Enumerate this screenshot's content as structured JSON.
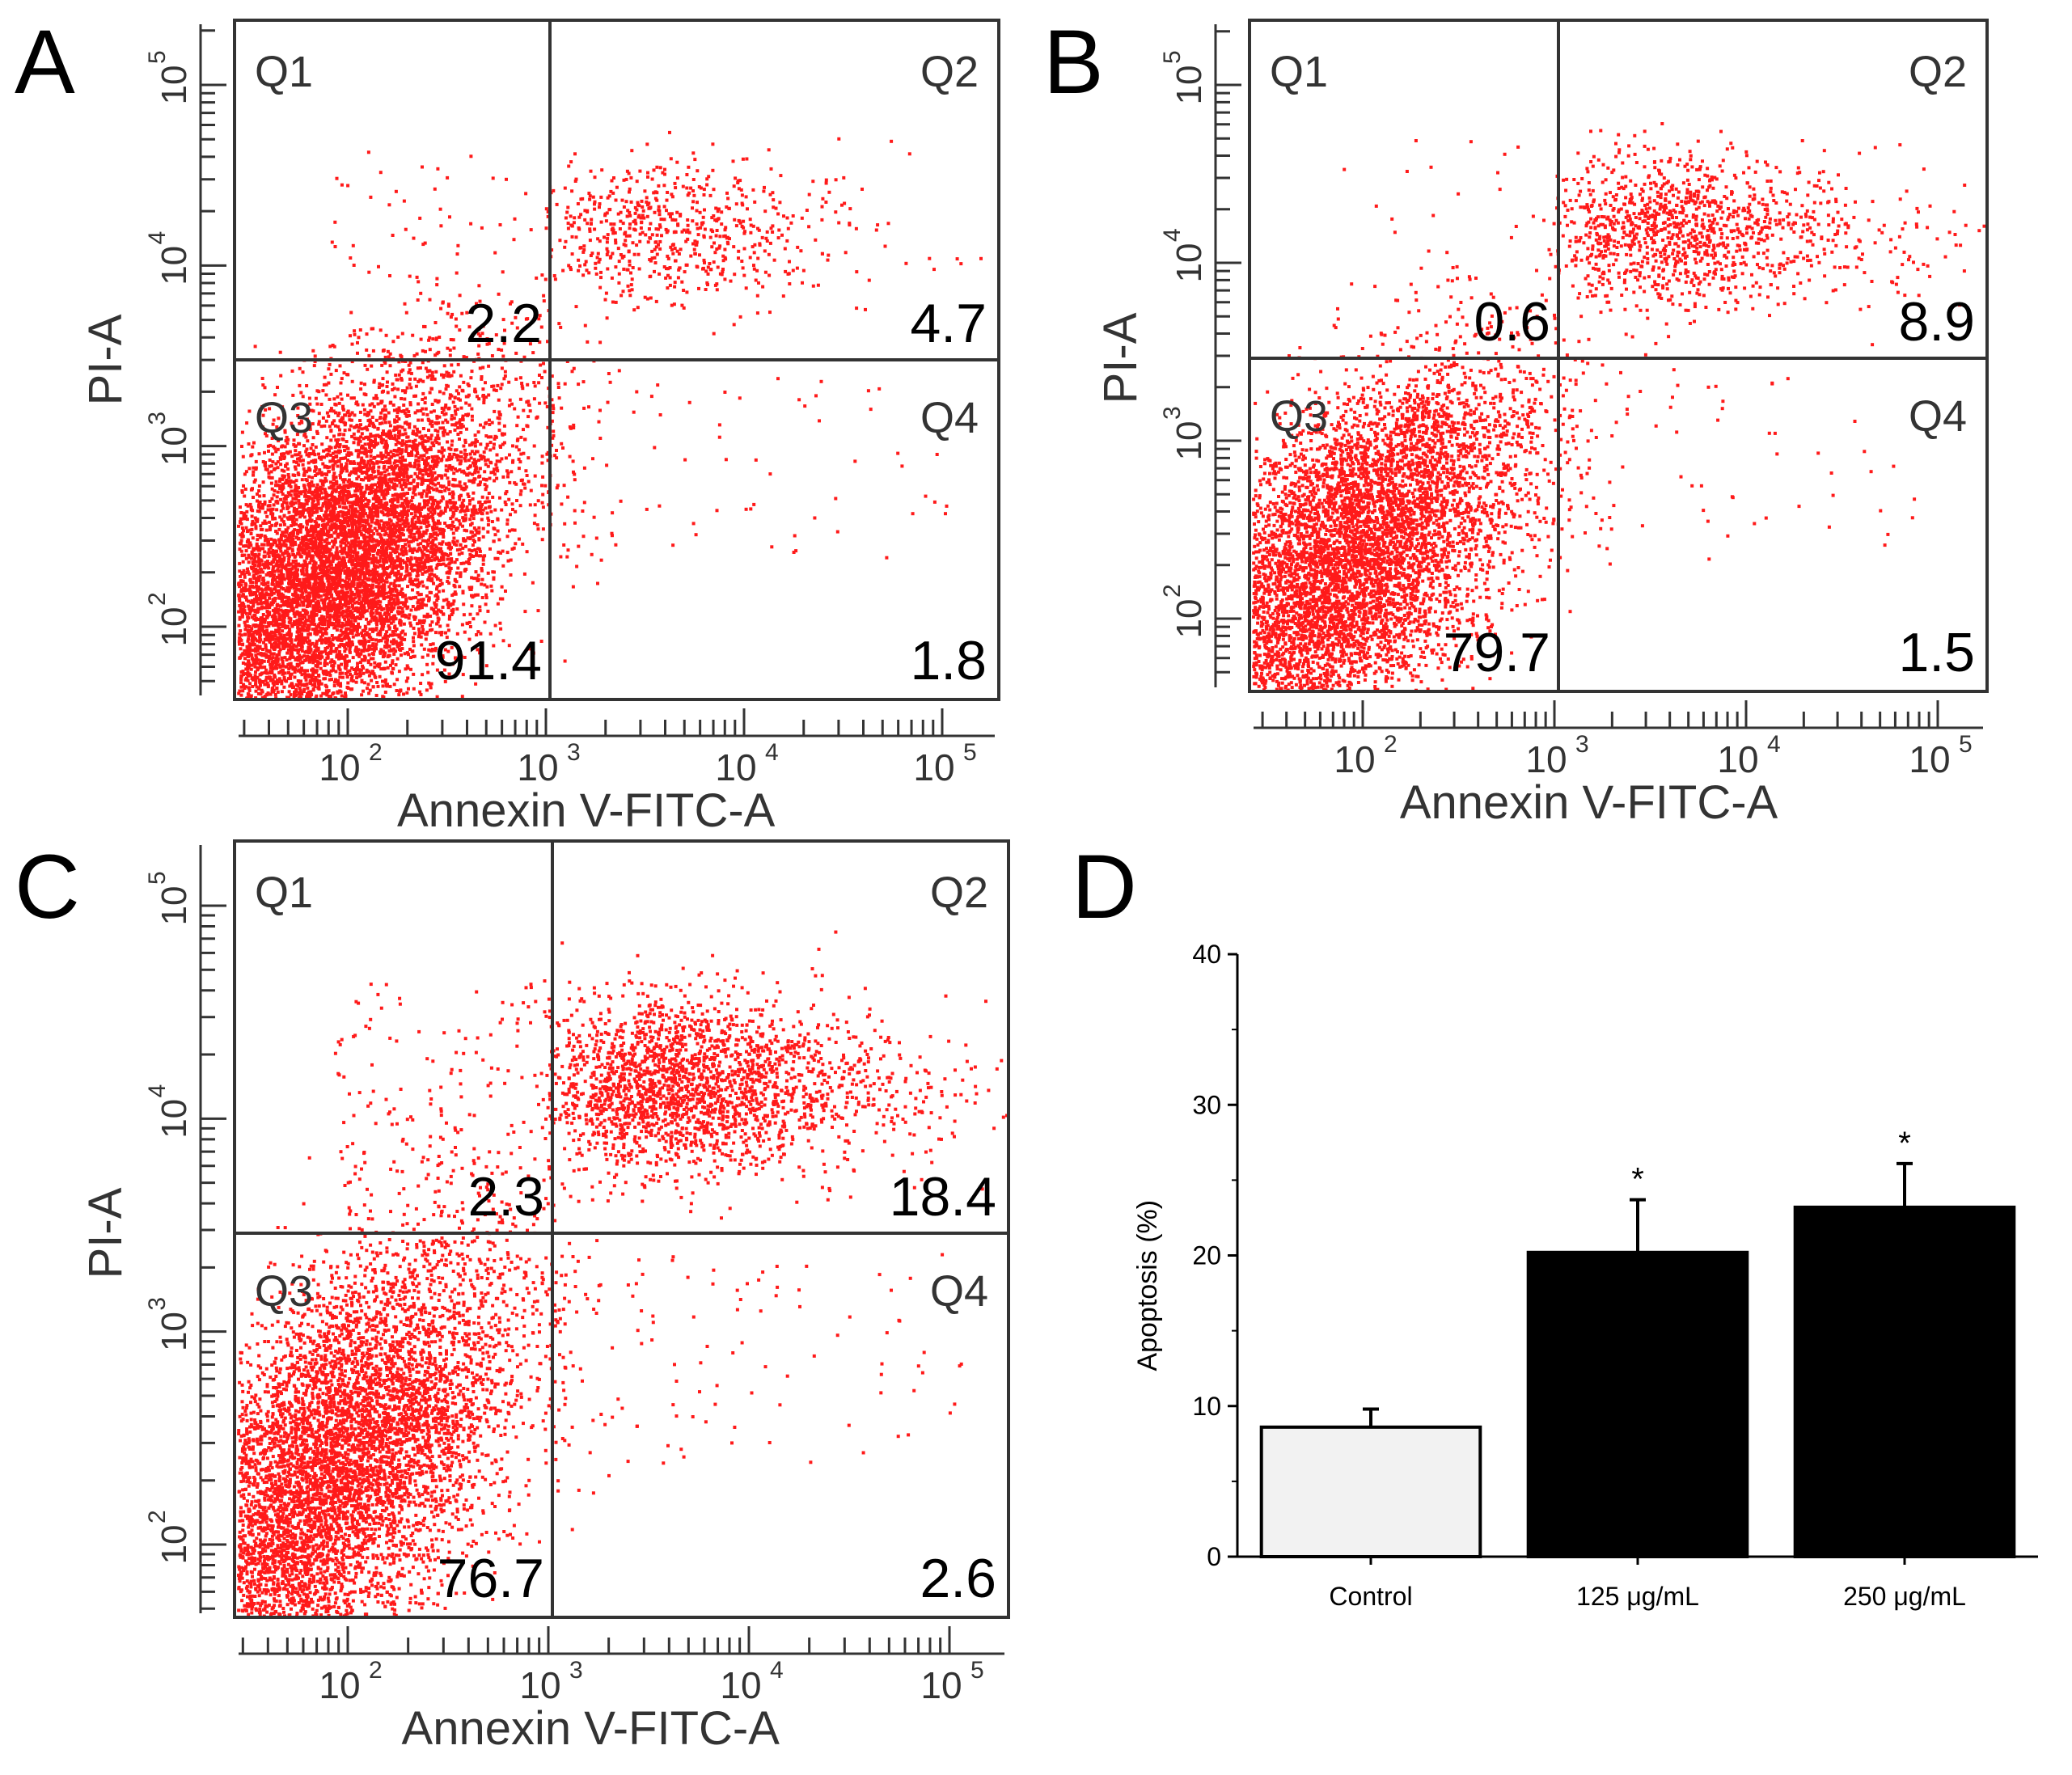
{
  "colors": {
    "dot": "#ff1a1a",
    "frame": "#333333",
    "text": "#000000",
    "bar_control": "#f2f2f2",
    "bar_treated": "#000000"
  },
  "chart_data": [
    {
      "panel": "A",
      "type": "scatter",
      "xlabel": "Annexin V-FITC-A",
      "ylabel": "PI-A",
      "xticks": [
        "10",
        "10",
        "10",
        "10"
      ],
      "xtick_exponents": [
        "2",
        "3",
        "4",
        "5"
      ],
      "yticks": [
        "10",
        "10",
        "10",
        "10"
      ],
      "ytick_exponents": [
        "2",
        "3",
        "4",
        "5"
      ],
      "axis_scale": "log",
      "quadrants": [
        {
          "name": "Q1",
          "percent": "2.2"
        },
        {
          "name": "Q2",
          "percent": "4.7"
        },
        {
          "name": "Q3",
          "percent": "91.4"
        },
        {
          "name": "Q4",
          "percent": "1.8"
        }
      ]
    },
    {
      "panel": "B",
      "type": "scatter",
      "xlabel": "Annexin V-FITC-A",
      "ylabel": "PI-A",
      "xticks": [
        "10",
        "10",
        "10",
        "10"
      ],
      "xtick_exponents": [
        "2",
        "3",
        "4",
        "5"
      ],
      "yticks": [
        "10",
        "10",
        "10",
        "10"
      ],
      "ytick_exponents": [
        "2",
        "3",
        "4",
        "5"
      ],
      "axis_scale": "log",
      "quadrants": [
        {
          "name": "Q1",
          "percent": "0.6"
        },
        {
          "name": "Q2",
          "percent": "8.9"
        },
        {
          "name": "Q3",
          "percent": "79.7"
        },
        {
          "name": "Q4",
          "percent": "1.5"
        }
      ]
    },
    {
      "panel": "C",
      "type": "scatter",
      "xlabel": "Annexin V-FITC-A",
      "ylabel": "PI-A",
      "xticks": [
        "10",
        "10",
        "10",
        "10"
      ],
      "xtick_exponents": [
        "2",
        "3",
        "4",
        "5"
      ],
      "yticks": [
        "10",
        "10",
        "10",
        "10"
      ],
      "ytick_exponents": [
        "2",
        "3",
        "4",
        "5"
      ],
      "axis_scale": "log",
      "quadrants": [
        {
          "name": "Q1",
          "percent": "2.3"
        },
        {
          "name": "Q2",
          "percent": "18.4"
        },
        {
          "name": "Q3",
          "percent": "76.7"
        },
        {
          "name": "Q4",
          "percent": "2.6"
        }
      ]
    },
    {
      "panel": "D",
      "type": "bar",
      "ylabel": "Apoptosis (%)",
      "xlabel": "",
      "ylim": [
        0,
        40
      ],
      "yticks": [
        0,
        10,
        20,
        30,
        40
      ],
      "categories": [
        "Control",
        "125 μg/mL",
        "250 μg/mL"
      ],
      "values": [
        8.6,
        20.2,
        23.2
      ],
      "errors": [
        1.2,
        3.5,
        2.9
      ],
      "significance": [
        "",
        "*",
        "*"
      ]
    }
  ]
}
